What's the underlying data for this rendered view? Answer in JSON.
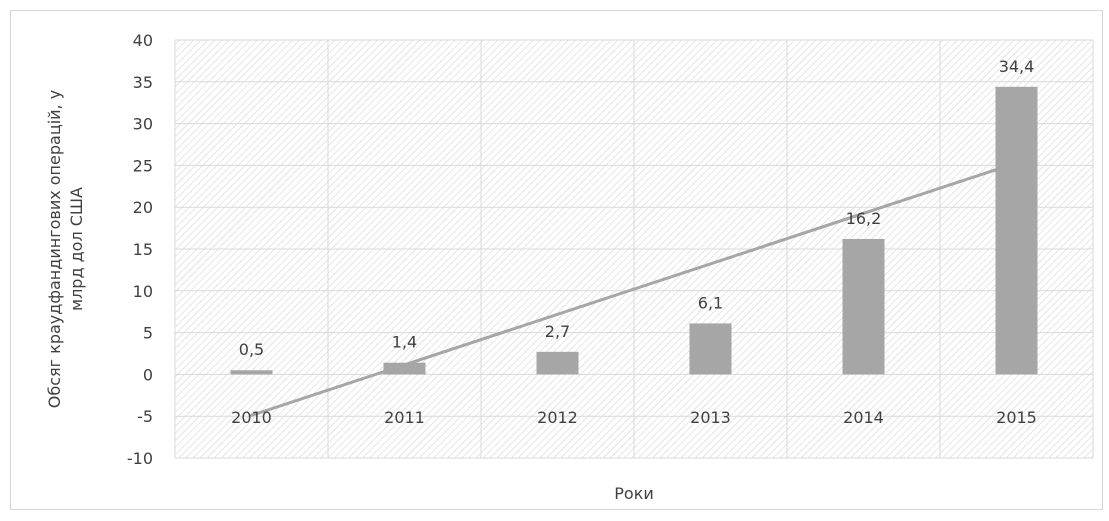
{
  "chart_data": {
    "type": "bar",
    "categories": [
      "2010",
      "2011",
      "2012",
      "2013",
      "2014",
      "2015"
    ],
    "series": [
      {
        "values": [
          0.5,
          1.4,
          2.7,
          6.1,
          16.2,
          34.4
        ],
        "data_labels": [
          "0,5",
          "1,4",
          "2,7",
          "6,1",
          "16,2",
          "34,4"
        ],
        "color": "#a6a6a6"
      }
    ],
    "trendline": {
      "type": "linear",
      "start": -4.9,
      "end": 25.3,
      "color": "#a6a6a6"
    },
    "xlabel": "Роки",
    "ylabel_lines": [
      "Обсяг краудфандингових операцій, у",
      "млрд дол США"
    ],
    "ylim": [
      -10,
      40
    ],
    "yticks": [
      "-10",
      "-5",
      "0",
      "5",
      "10",
      "15",
      "20",
      "25",
      "30",
      "35",
      "40"
    ],
    "grid": true,
    "plot_fill": "hatched"
  }
}
